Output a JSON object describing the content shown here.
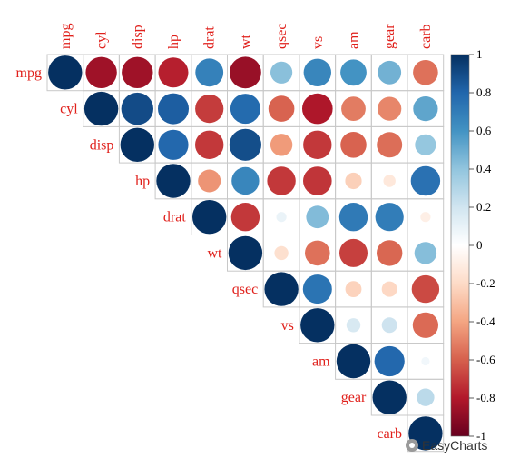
{
  "chart_data": {
    "type": "correlation-matrix",
    "shape": "circle",
    "layout": "upper-triangle",
    "variables": [
      "mpg",
      "cyl",
      "disp",
      "hp",
      "drat",
      "wt",
      "qsec",
      "vs",
      "am",
      "gear",
      "carb"
    ],
    "matrix": [
      [
        1.0,
        -0.85,
        -0.85,
        -0.78,
        0.68,
        -0.87,
        0.42,
        0.66,
        0.6,
        0.48,
        -0.55
      ],
      [
        -0.85,
        1.0,
        0.9,
        0.83,
        -0.7,
        0.78,
        -0.59,
        -0.81,
        -0.52,
        -0.49,
        0.53
      ],
      [
        -0.85,
        0.9,
        1.0,
        0.79,
        -0.71,
        0.89,
        -0.43,
        -0.71,
        -0.59,
        -0.56,
        0.39
      ],
      [
        -0.78,
        0.83,
        0.79,
        1.0,
        -0.45,
        0.66,
        -0.71,
        -0.72,
        -0.24,
        -0.13,
        0.75
      ],
      [
        0.68,
        -0.7,
        -0.71,
        -0.45,
        1.0,
        -0.71,
        0.09,
        0.44,
        0.71,
        0.7,
        -0.09
      ],
      [
        -0.87,
        0.78,
        0.89,
        0.66,
        -0.71,
        1.0,
        -0.17,
        -0.55,
        -0.69,
        -0.58,
        0.43
      ],
      [
        0.42,
        -0.59,
        -0.43,
        -0.71,
        0.09,
        -0.17,
        1.0,
        0.74,
        -0.23,
        -0.21,
        -0.66
      ],
      [
        0.66,
        -0.81,
        -0.71,
        -0.72,
        0.44,
        -0.55,
        0.74,
        1.0,
        0.17,
        0.21,
        -0.57
      ],
      [
        0.6,
        -0.52,
        -0.59,
        -0.24,
        0.71,
        -0.69,
        -0.23,
        0.17,
        1.0,
        0.79,
        0.06
      ],
      [
        0.48,
        -0.49,
        -0.56,
        -0.13,
        0.7,
        -0.58,
        -0.21,
        0.21,
        0.79,
        1.0,
        0.27
      ],
      [
        -0.55,
        0.53,
        0.39,
        0.75,
        -0.09,
        0.43,
        -0.66,
        -0.57,
        0.06,
        0.27,
        1.0
      ]
    ],
    "colorbar": {
      "ticks": [
        "1",
        "0.8",
        "0.6",
        "0.4",
        "0.2",
        "0",
        "-0.2",
        "-0.4",
        "-0.6",
        "-0.8",
        "-1"
      ],
      "range": [
        -1,
        1
      ]
    },
    "colors": {
      "neg_strong": "#67001f",
      "neg_mid": "#d6604d",
      "neg_light": "#fddbc7",
      "zero": "#ffffff",
      "pos_light": "#d1e5f0",
      "pos_mid": "#4393c3",
      "pos_strong": "#053061",
      "label": "#e0201b"
    }
  },
  "watermark": {
    "text": "EasyCharts",
    "icon": "wechat-icon"
  }
}
